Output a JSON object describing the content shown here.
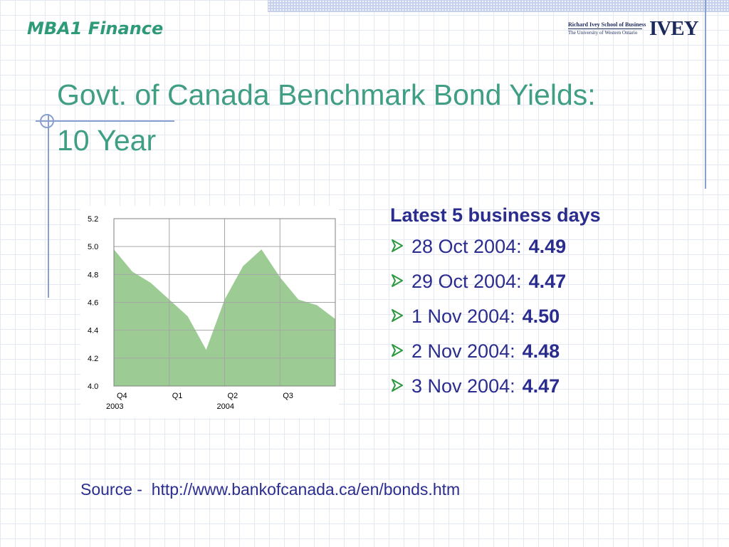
{
  "header": {
    "course_label": "MBA1 Finance",
    "logo_line1": "Richard Ivey School of Business",
    "logo_line2": "The University of Western Ontario",
    "logo_mark": "IVEY"
  },
  "title": {
    "line1": "Govt. of Canada Benchmark Bond Yields:",
    "line2": "10 Year"
  },
  "latest": {
    "heading": "Latest 5 business days",
    "items": [
      {
        "date": "28 Oct 2004:",
        "value": "4.49"
      },
      {
        "date": "29 Oct 2004:",
        "value": "4.47"
      },
      {
        "date": "1 Nov 2004:",
        "value": "4.50"
      },
      {
        "date": "2 Nov 2004:",
        "value": "4.48"
      },
      {
        "date": "3 Nov 2004:",
        "value": "4.47"
      }
    ]
  },
  "source": {
    "prefix": "Source -  ",
    "url": "http://www.bankofcanada.ca/en/bonds.htm"
  },
  "colors": {
    "title": "#3f9e83",
    "list_text": "#2b2d8e",
    "bullet_arrow": "#2e9a40",
    "area_fill": "#9ccc94",
    "grid": "#a6a6a6"
  },
  "chart_data": {
    "type": "area",
    "title": "",
    "xlabel": "",
    "ylabel": "",
    "ylim": [
      4.0,
      5.2
    ],
    "yticks": [
      "5.2",
      "5.0",
      "4.8",
      "4.6",
      "4.4",
      "4.2",
      "4.0"
    ],
    "xticks": [
      {
        "label": "Q4",
        "year": "2003"
      },
      {
        "label": "Q1",
        "year": ""
      },
      {
        "label": "Q2",
        "year": "2004"
      },
      {
        "label": "Q3",
        "year": ""
      }
    ],
    "grid": true,
    "x": [
      "Oct 2003",
      "Nov 2003",
      "Dec 2003",
      "Jan 2004",
      "Feb 2004",
      "Mar 2004",
      "Apr 2004",
      "May 2004",
      "Jun 2004",
      "Jul 2004",
      "Aug 2004",
      "Sep 2004",
      "Oct 2004"
    ],
    "series": [
      {
        "values": [
          4.98,
          4.82,
          4.74,
          4.62,
          4.5,
          4.26,
          4.62,
          4.86,
          4.98,
          4.78,
          4.62,
          4.58,
          4.48
        ]
      }
    ]
  }
}
